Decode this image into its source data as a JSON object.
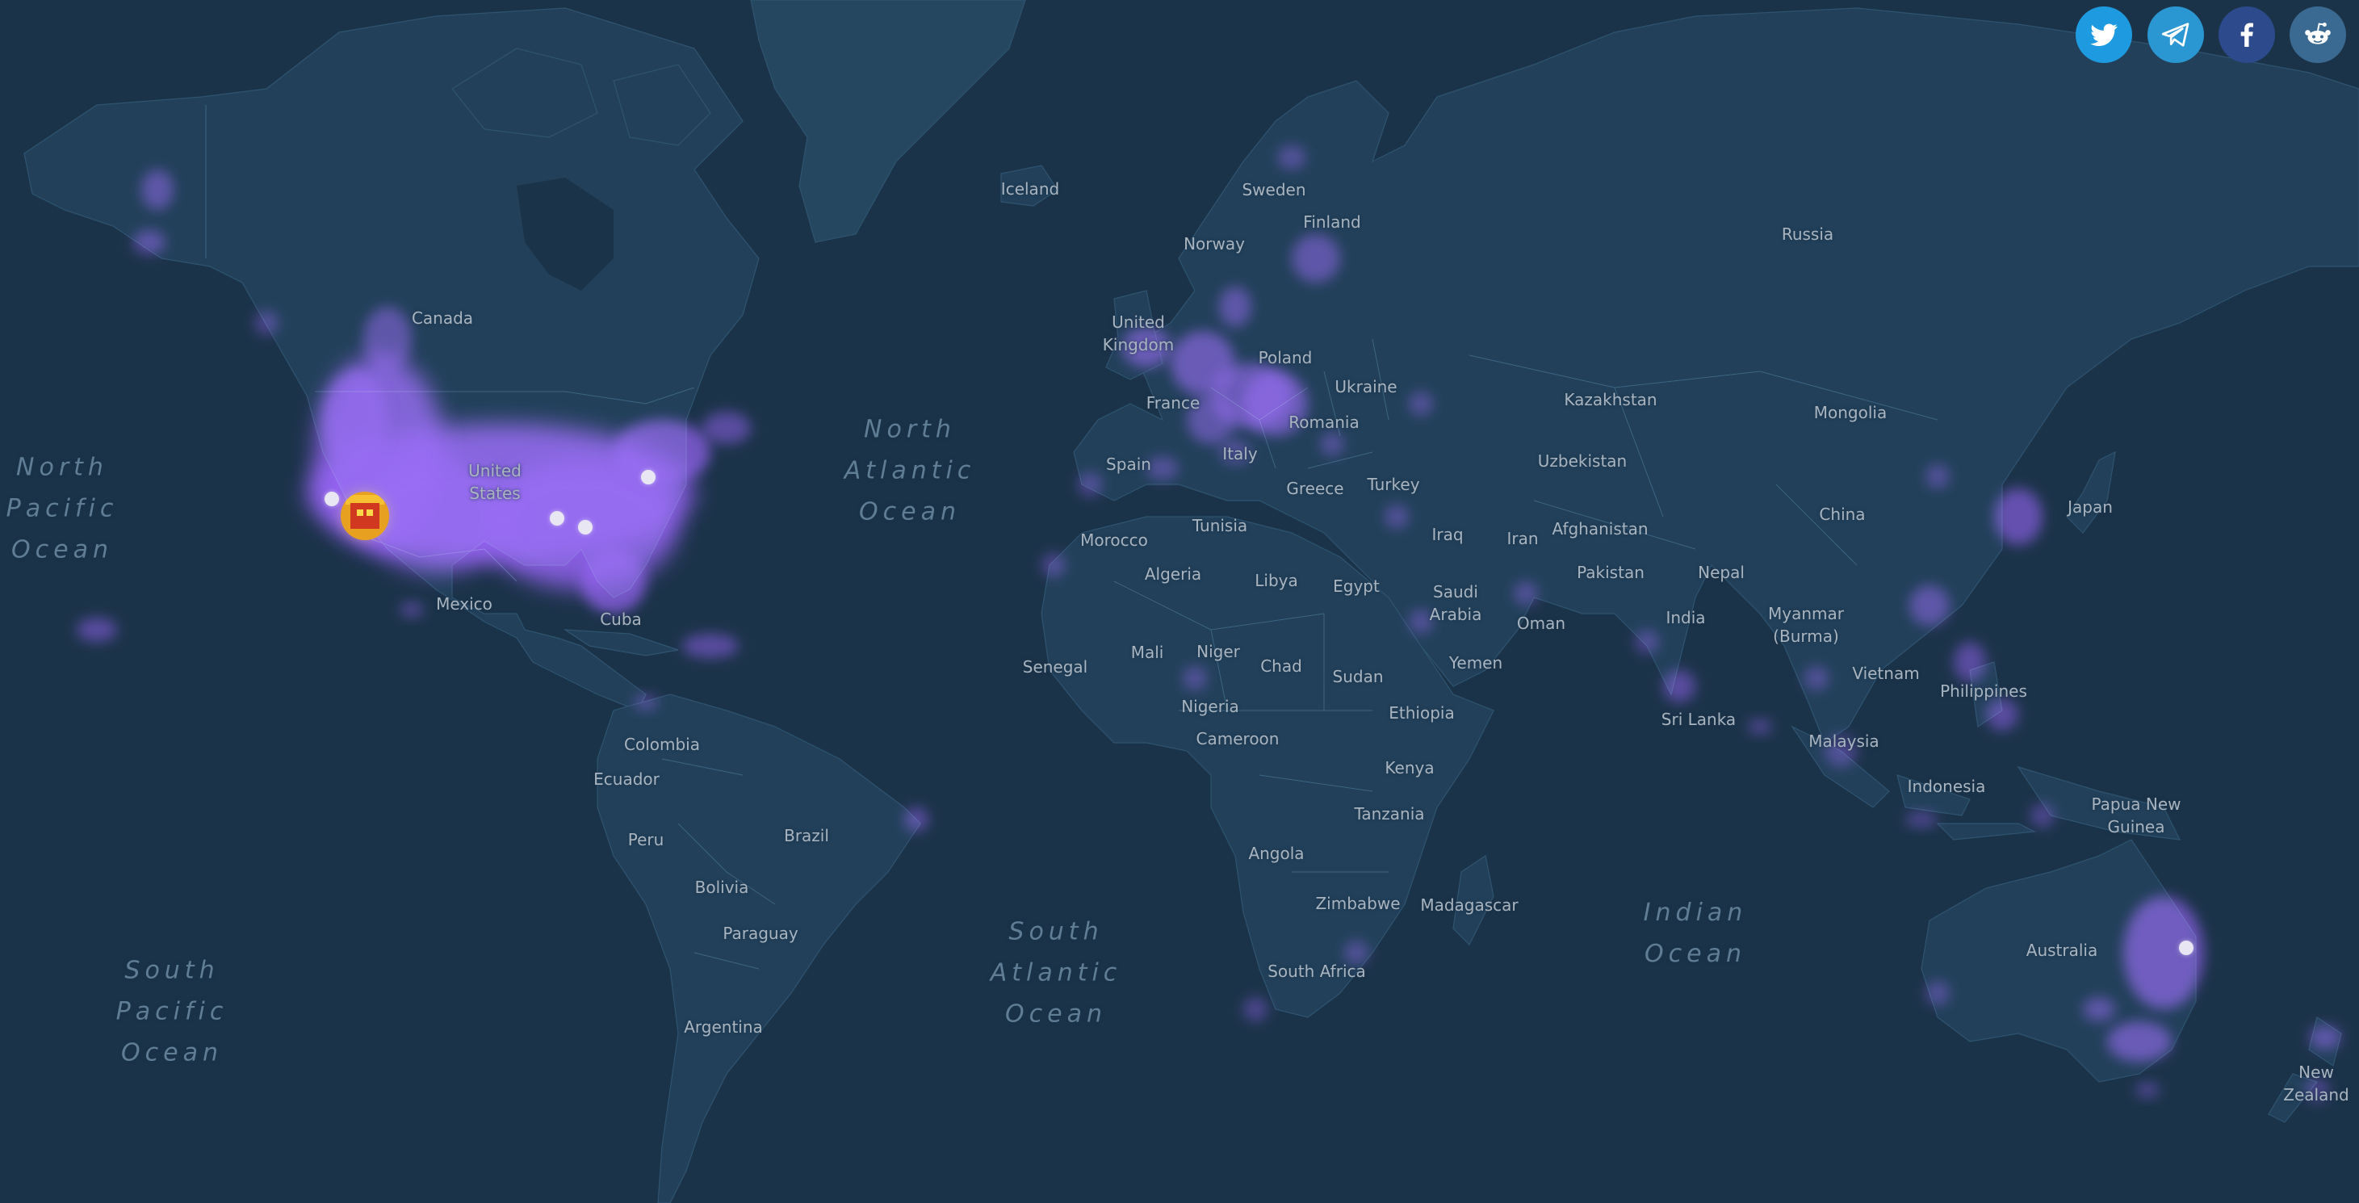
{
  "share": [
    {
      "name": "twitter",
      "icon": "twitter-icon",
      "color": "#1d9ae0"
    },
    {
      "name": "telegram",
      "icon": "telegram-icon",
      "color": "#2a97d2"
    },
    {
      "name": "facebook",
      "icon": "facebook-icon",
      "color": "#2c4a8c"
    },
    {
      "name": "reddit",
      "icon": "reddit-icon",
      "color": "#3a6a92"
    }
  ],
  "colors": {
    "ocean": "#1b3349",
    "land": "#22405a",
    "heat": "#8a3cf0",
    "heat_hot": "#e8d020"
  },
  "oceans": {
    "north_pacific": "North\nPacific\nOcean",
    "north_atlantic": "North\nAtlantic\nOcean",
    "south_pacific": "South\nPacific\nOcean",
    "south_atlantic": "South\nAtlantic\nOcean",
    "indian": "Indian\nOcean"
  },
  "labels": {
    "canada": "Canada",
    "united_states": "United\nStates",
    "mexico": "Mexico",
    "cuba": "Cuba",
    "colombia": "Colombia",
    "ecuador": "Ecuador",
    "peru": "Peru",
    "brazil": "Brazil",
    "bolivia": "Bolivia",
    "paraguay": "Paraguay",
    "argentina": "Argentina",
    "iceland": "Iceland",
    "sweden": "Sweden",
    "finland": "Finland",
    "norway": "Norway",
    "russia": "Russia",
    "united_kingdom": "United\nKingdom",
    "poland": "Poland",
    "ukraine": "Ukraine",
    "france": "France",
    "romania": "Romania",
    "spain": "Spain",
    "italy": "Italy",
    "greece": "Greece",
    "turkey": "Turkey",
    "kazakhstan": "Kazakhstan",
    "mongolia": "Mongolia",
    "uzbekistan": "Uzbekistan",
    "china": "China",
    "japan": "Japan",
    "morocco": "Morocco",
    "tunisia": "Tunisia",
    "algeria": "Algeria",
    "libya": "Libya",
    "egypt": "Egypt",
    "iraq": "Iraq",
    "iran": "Iran",
    "afghanistan": "Afghanistan",
    "pakistan": "Pakistan",
    "nepal": "Nepal",
    "saudi_arabia": "Saudi\nArabia",
    "oman": "Oman",
    "yemen": "Yemen",
    "india": "India",
    "myanmar": "Myanmar\n(Burma)",
    "vietnam": "Vietnam",
    "philippines": "Philippines",
    "sri_lanka": "Sri Lanka",
    "malaysia": "Malaysia",
    "indonesia": "Indonesia",
    "papua_new_guinea": "Papua New\nGuinea",
    "senegal": "Senegal",
    "mali": "Mali",
    "niger": "Niger",
    "chad": "Chad",
    "sudan": "Sudan",
    "ethiopia": "Ethiopia",
    "nigeria": "Nigeria",
    "cameroon": "Cameroon",
    "kenya": "Kenya",
    "tanzania": "Tanzania",
    "angola": "Angola",
    "zimbabwe": "Zimbabwe",
    "madagascar": "Madagascar",
    "south_africa": "South Africa",
    "australia": "Australia",
    "new_zealand": "New\nZealand"
  }
}
